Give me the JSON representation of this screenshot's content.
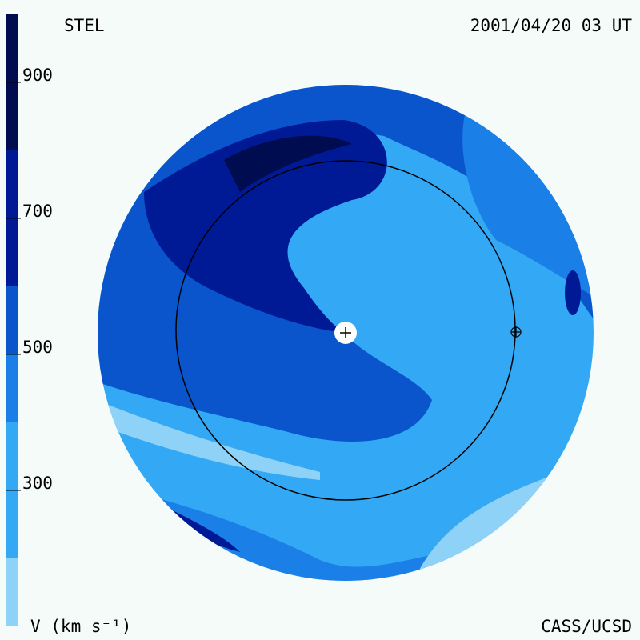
{
  "header": {
    "left": "STEL",
    "right": "2001/04/20 03 UT"
  },
  "footer": {
    "left": "V (km s⁻¹)",
    "right": "CASS/UCSD"
  },
  "colorbar": {
    "lim": [
      100,
      1000
    ],
    "bands": [
      {
        "from": 100,
        "to": 200,
        "color": "#8fd2f8"
      },
      {
        "from": 200,
        "to": 400,
        "color": "#33a8f5"
      },
      {
        "from": 400,
        "to": 500,
        "color": "#1a80e8"
      },
      {
        "from": 500,
        "to": 600,
        "color": "#0a55cc"
      },
      {
        "from": 600,
        "to": 800,
        "color": "#001a96"
      },
      {
        "from": 800,
        "to": 1000,
        "color": "#000c50"
      }
    ],
    "ticks": [
      300,
      500,
      700,
      900
    ]
  }
}
